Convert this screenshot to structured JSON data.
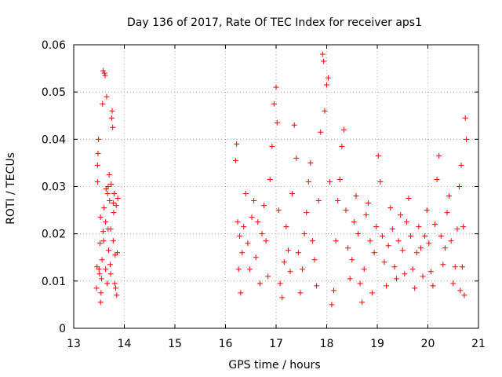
{
  "chart_data": {
    "type": "scatter",
    "title": "Day 136 of 2017, Rate Of TEC Index for receiver aps1",
    "xlabel": "GPS time / hours",
    "ylabel": "ROTI / TECUs",
    "xlim": [
      13,
      21
    ],
    "ylim": [
      0,
      0.06
    ],
    "x_ticks": [
      13,
      14,
      15,
      16,
      17,
      18,
      19,
      20,
      21
    ],
    "x_tick_labels": [
      "13",
      "14",
      "15",
      "16",
      "17",
      "18",
      "19",
      "20",
      "21"
    ],
    "y_ticks": [
      0,
      0.01,
      0.02,
      0.03,
      0.04,
      0.05,
      0.06
    ],
    "y_tick_labels": [
      "0",
      "0.01",
      "0.02",
      "0.03",
      "0.04",
      "0.05",
      "0.06"
    ],
    "grid": true,
    "marker": "+",
    "color": "#ff0000",
    "series": [
      {
        "name": "ROTI",
        "points": [
          [
            13.45,
            0.0085
          ],
          [
            13.46,
            0.013
          ],
          [
            13.47,
            0.031
          ],
          [
            13.48,
            0.037
          ],
          [
            13.49,
            0.04
          ],
          [
            13.5,
            0.0125
          ],
          [
            13.51,
            0.0115
          ],
          [
            13.52,
            0.018
          ],
          [
            13.53,
            0.0055
          ],
          [
            13.54,
            0.0075
          ],
          [
            13.55,
            0.0105
          ],
          [
            13.56,
            0.0145
          ],
          [
            13.57,
            0.0475
          ],
          [
            13.58,
            0.0545
          ],
          [
            13.59,
            0.0185
          ],
          [
            13.6,
            0.0255
          ],
          [
            13.61,
            0.054
          ],
          [
            13.62,
            0.0535
          ],
          [
            13.63,
            0.0125
          ],
          [
            13.64,
            0.0295
          ],
          [
            13.65,
            0.049
          ],
          [
            13.66,
            0.0095
          ],
          [
            13.67,
            0.0285
          ],
          [
            13.68,
            0.021
          ],
          [
            13.69,
            0.0165
          ],
          [
            13.7,
            0.0325
          ],
          [
            13.71,
            0.027
          ],
          [
            13.72,
            0.0135
          ],
          [
            13.73,
            0.0115
          ],
          [
            13.74,
            0.0305
          ],
          [
            13.75,
            0.0445
          ],
          [
            13.76,
            0.046
          ],
          [
            13.77,
            0.0425
          ],
          [
            13.78,
            0.0265
          ],
          [
            13.79,
            0.0245
          ],
          [
            13.8,
            0.0285
          ],
          [
            13.81,
            0.0095
          ],
          [
            13.82,
            0.0155
          ],
          [
            13.83,
            0.0085
          ],
          [
            13.84,
            0.026
          ],
          [
            13.85,
            0.007
          ],
          [
            13.86,
            0.016
          ],
          [
            13.87,
            0.0275
          ],
          [
            13.47,
            0.0345
          ],
          [
            13.53,
            0.0235
          ],
          [
            13.58,
            0.0205
          ],
          [
            13.63,
            0.0225
          ],
          [
            13.68,
            0.03
          ],
          [
            13.73,
            0.021
          ],
          [
            13.78,
            0.0185
          ],
          [
            16.2,
            0.0355
          ],
          [
            16.22,
            0.039
          ],
          [
            16.24,
            0.0225
          ],
          [
            16.26,
            0.0125
          ],
          [
            16.28,
            0.0195
          ],
          [
            16.3,
            0.0075
          ],
          [
            16.33,
            0.016
          ],
          [
            16.36,
            0.0215
          ],
          [
            16.4,
            0.0285
          ],
          [
            16.44,
            0.018
          ],
          [
            16.48,
            0.0125
          ],
          [
            16.52,
            0.0235
          ],
          [
            16.56,
            0.027
          ],
          [
            16.6,
            0.015
          ],
          [
            16.64,
            0.0225
          ],
          [
            16.68,
            0.0095
          ],
          [
            16.72,
            0.02
          ],
          [
            16.76,
            0.026
          ],
          [
            16.8,
            0.0185
          ],
          [
            16.84,
            0.011
          ],
          [
            16.88,
            0.0315
          ],
          [
            16.92,
            0.0385
          ],
          [
            16.96,
            0.0475
          ],
          [
            17.0,
            0.051
          ],
          [
            17.02,
            0.0435
          ],
          [
            17.05,
            0.025
          ],
          [
            17.08,
            0.0095
          ],
          [
            17.12,
            0.0065
          ],
          [
            17.16,
            0.014
          ],
          [
            17.2,
            0.0215
          ],
          [
            17.24,
            0.0165
          ],
          [
            17.28,
            0.012
          ],
          [
            17.32,
            0.0285
          ],
          [
            17.36,
            0.043
          ],
          [
            17.4,
            0.036
          ],
          [
            17.44,
            0.016
          ],
          [
            17.48,
            0.0075
          ],
          [
            17.52,
            0.0125
          ],
          [
            17.56,
            0.02
          ],
          [
            17.6,
            0.0245
          ],
          [
            17.64,
            0.031
          ],
          [
            17.68,
            0.035
          ],
          [
            17.72,
            0.0185
          ],
          [
            17.76,
            0.0145
          ],
          [
            17.8,
            0.009
          ],
          [
            17.84,
            0.027
          ],
          [
            17.88,
            0.0415
          ],
          [
            17.92,
            0.058
          ],
          [
            17.94,
            0.0565
          ],
          [
            17.96,
            0.046
          ],
          [
            18.0,
            0.0515
          ],
          [
            18.03,
            0.053
          ],
          [
            18.06,
            0.031
          ],
          [
            18.1,
            0.005
          ],
          [
            18.14,
            0.008
          ],
          [
            18.18,
            0.0185
          ],
          [
            18.22,
            0.027
          ],
          [
            18.26,
            0.0315
          ],
          [
            18.3,
            0.0385
          ],
          [
            18.34,
            0.042
          ],
          [
            18.38,
            0.025
          ],
          [
            18.42,
            0.017
          ],
          [
            18.46,
            0.0105
          ],
          [
            18.5,
            0.0145
          ],
          [
            18.54,
            0.0225
          ],
          [
            18.58,
            0.028
          ],
          [
            18.62,
            0.02
          ],
          [
            18.66,
            0.0095
          ],
          [
            18.7,
            0.0055
          ],
          [
            18.74,
            0.0125
          ],
          [
            18.78,
            0.024
          ],
          [
            18.82,
            0.0265
          ],
          [
            18.86,
            0.0185
          ],
          [
            18.9,
            0.0075
          ],
          [
            18.94,
            0.016
          ],
          [
            18.98,
            0.0215
          ],
          [
            19.02,
            0.0365
          ],
          [
            19.06,
            0.031
          ],
          [
            19.1,
            0.0195
          ],
          [
            19.14,
            0.014
          ],
          [
            19.18,
            0.009
          ],
          [
            19.22,
            0.0175
          ],
          [
            19.26,
            0.0255
          ],
          [
            19.3,
            0.021
          ],
          [
            19.34,
            0.013
          ],
          [
            19.38,
            0.0105
          ],
          [
            19.42,
            0.0185
          ],
          [
            19.46,
            0.024
          ],
          [
            19.5,
            0.0165
          ],
          [
            19.54,
            0.0115
          ],
          [
            19.58,
            0.0225
          ],
          [
            19.62,
            0.0275
          ],
          [
            19.66,
            0.0195
          ],
          [
            19.7,
            0.0125
          ],
          [
            19.74,
            0.0085
          ],
          [
            19.78,
            0.016
          ],
          [
            19.82,
            0.0215
          ],
          [
            19.86,
            0.017
          ],
          [
            19.9,
            0.011
          ],
          [
            19.94,
            0.0195
          ],
          [
            19.98,
            0.025
          ],
          [
            20.02,
            0.018
          ],
          [
            20.06,
            0.012
          ],
          [
            20.1,
            0.009
          ],
          [
            20.14,
            0.022
          ],
          [
            20.18,
            0.0315
          ],
          [
            20.22,
            0.0365
          ],
          [
            20.26,
            0.0195
          ],
          [
            20.3,
            0.0135
          ],
          [
            20.34,
            0.017
          ],
          [
            20.38,
            0.0245
          ],
          [
            20.42,
            0.028
          ],
          [
            20.46,
            0.0185
          ],
          [
            20.5,
            0.0095
          ],
          [
            20.54,
            0.013
          ],
          [
            20.58,
            0.021
          ],
          [
            20.62,
            0.03
          ],
          [
            20.66,
            0.0345
          ],
          [
            20.7,
            0.0215
          ],
          [
            20.72,
            0.007
          ],
          [
            20.74,
            0.0445
          ],
          [
            20.76,
            0.04
          ],
          [
            20.68,
            0.013
          ],
          [
            20.64,
            0.008
          ]
        ]
      }
    ]
  }
}
